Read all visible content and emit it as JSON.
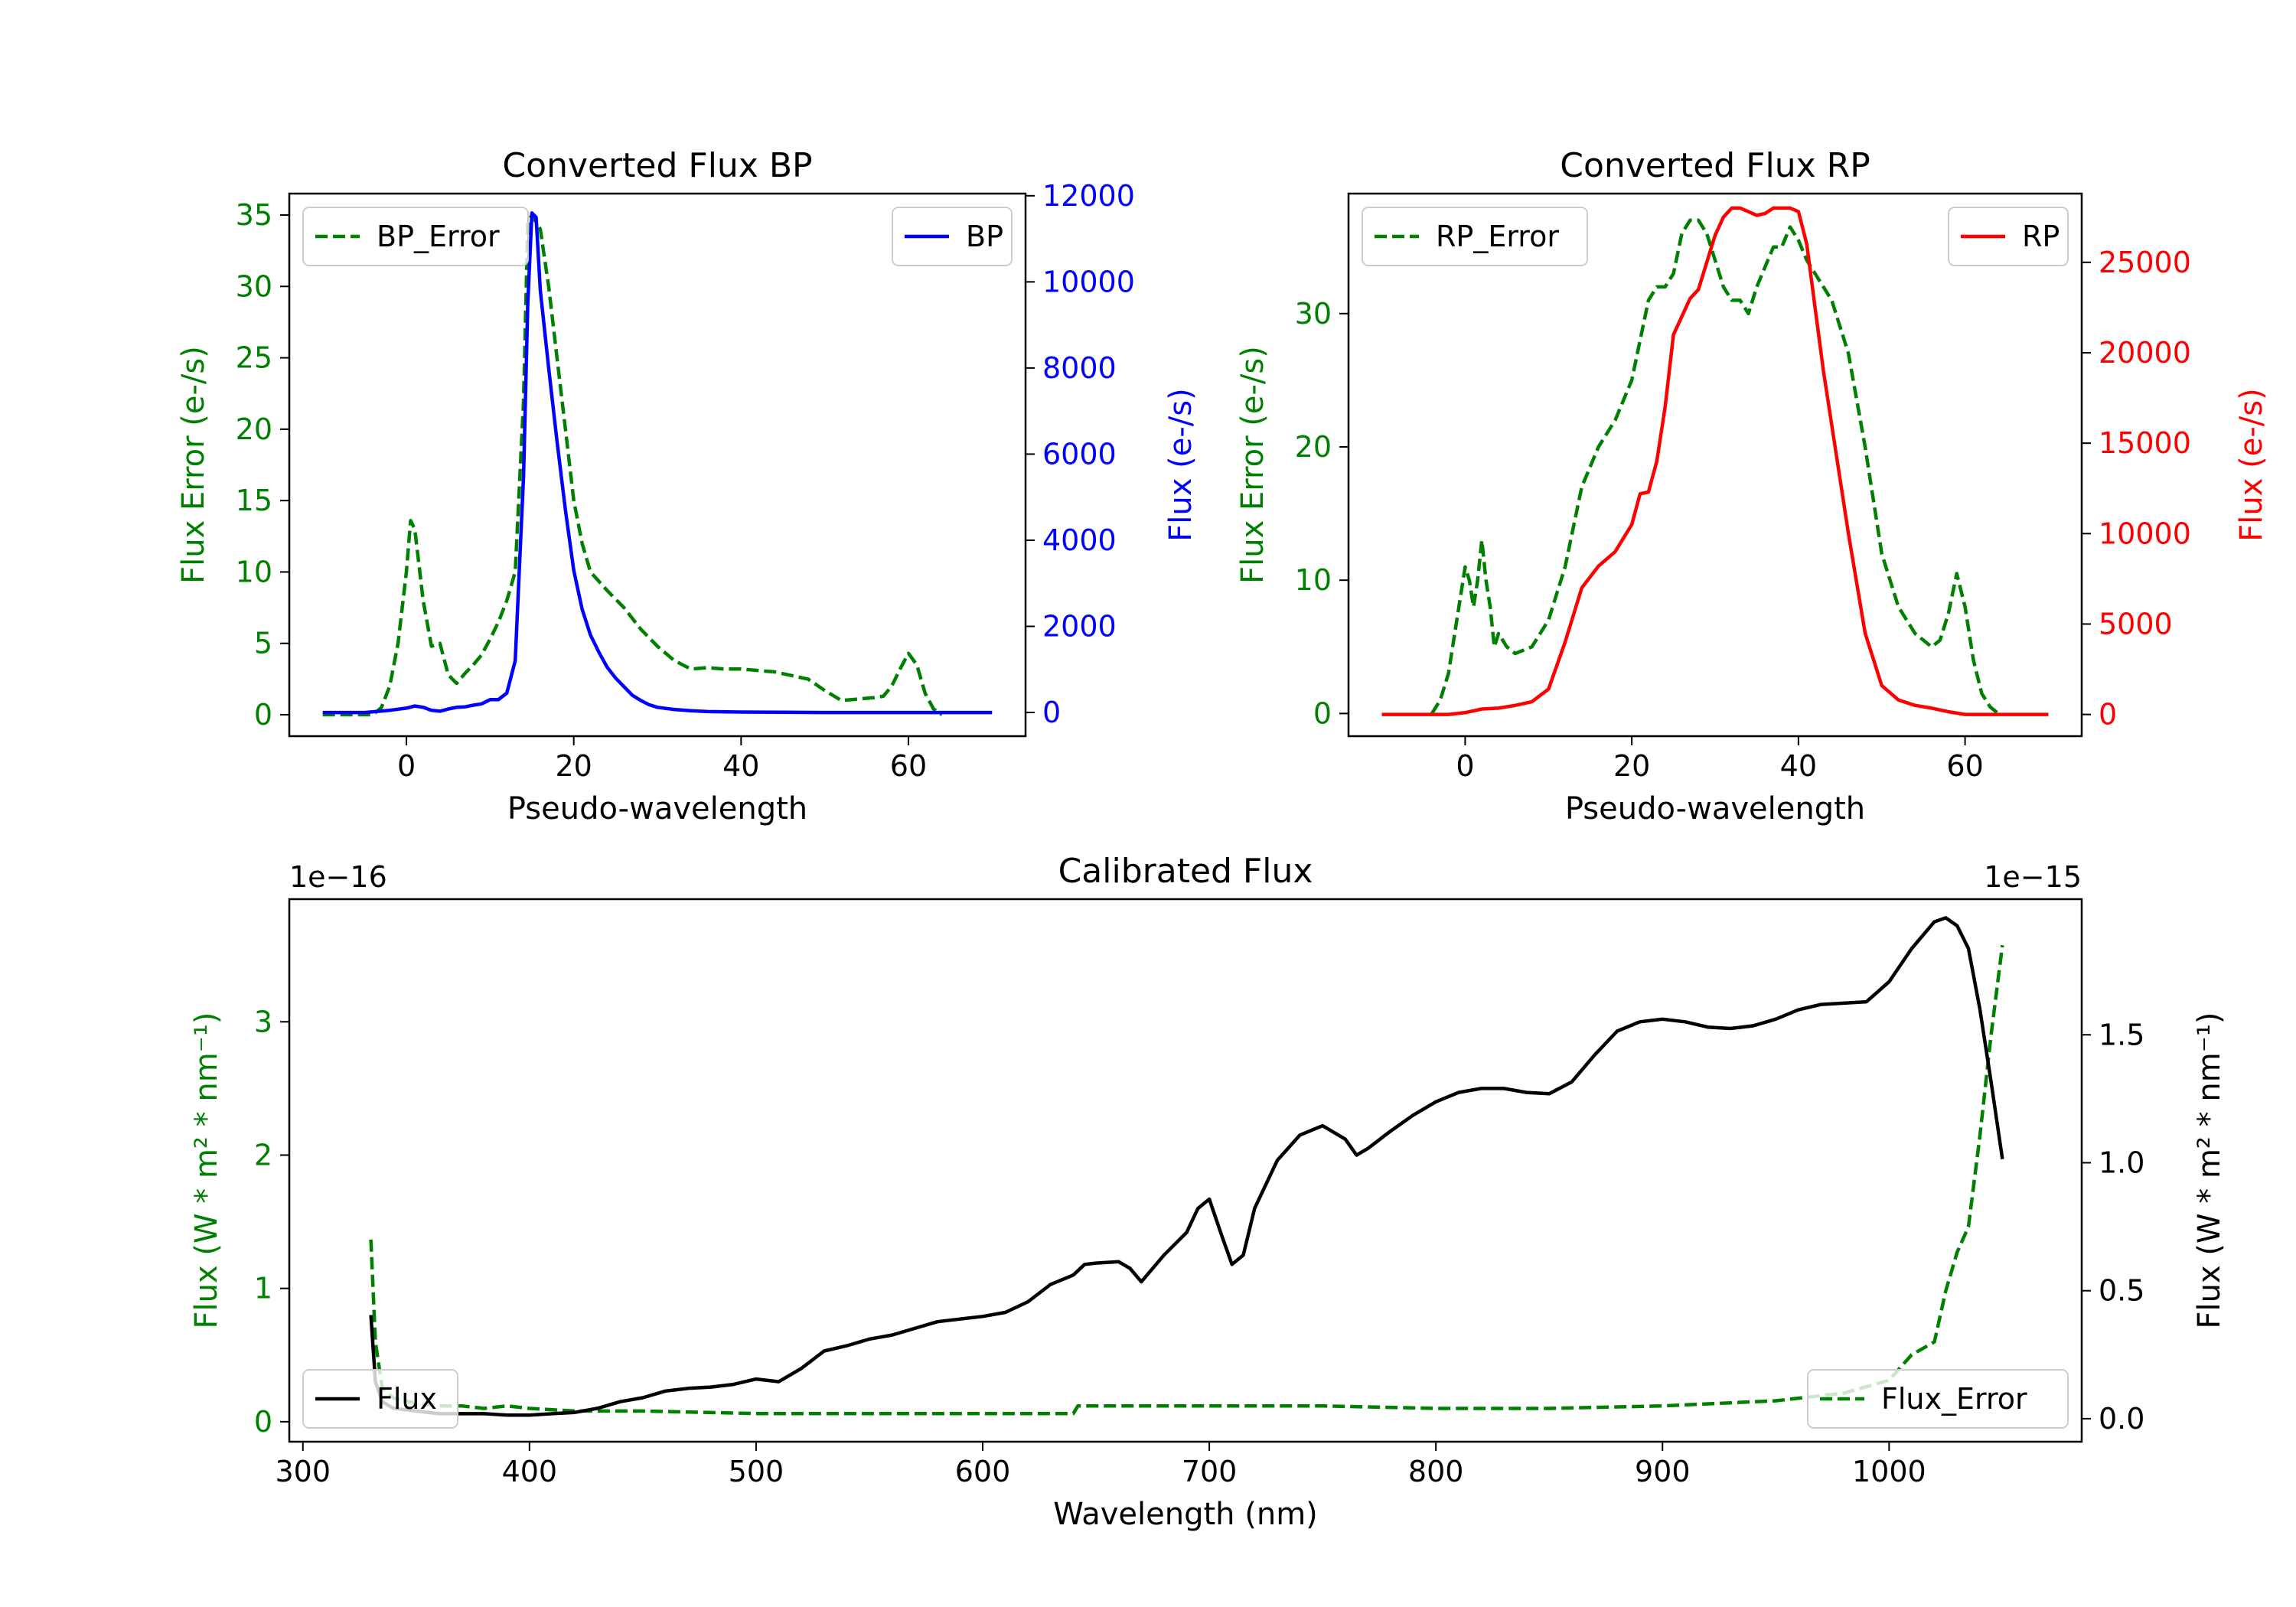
{
  "colors": {
    "green": "#008000",
    "blue": "#0000ff",
    "red": "#ff0000",
    "black": "#000000"
  },
  "chart_data": [
    {
      "id": "bp",
      "type": "line",
      "title": "Converted Flux BP",
      "xlabel": "Pseudo-wavelength",
      "ylabel_left": "Flux Error (e-/s)",
      "ylabel_right": "Flux (e-/s)",
      "xlim": [
        -14,
        74
      ],
      "ylim_left": [
        -1.5,
        36.5
      ],
      "ylim_right": [
        -550,
        12050
      ],
      "xticks": [
        0,
        20,
        40,
        60
      ],
      "yticks_left": [
        0,
        5,
        10,
        15,
        20,
        25,
        30,
        35
      ],
      "yticks_right": [
        0,
        2000,
        4000,
        6000,
        8000,
        10000,
        12000
      ],
      "legend_left": {
        "label": "BP_Error",
        "position": "upper left"
      },
      "legend_right": {
        "label": "BP",
        "position": "upper right"
      },
      "series": [
        {
          "name": "BP_Error",
          "axis": "left",
          "style": "dashed",
          "color": "#008000",
          "x": [
            -10,
            -4,
            -3,
            -2,
            -1,
            0,
            0.5,
            1,
            2,
            3,
            4,
            5,
            6,
            7,
            8,
            9,
            10,
            11,
            12,
            13,
            14,
            14.5,
            15,
            16,
            17,
            18,
            19,
            20,
            21,
            22,
            24,
            26,
            28,
            30,
            32,
            34,
            36,
            38,
            40,
            44,
            48,
            50,
            52,
            54,
            56,
            57,
            58,
            59,
            60,
            61,
            62,
            63,
            64
          ],
          "y": [
            0,
            0,
            0.5,
            2,
            5,
            10,
            13.6,
            13,
            8,
            4.8,
            5,
            2.8,
            2.2,
            2.9,
            3.5,
            4.2,
            5.3,
            6.5,
            8,
            10,
            22,
            34.5,
            35,
            34,
            30,
            25,
            20,
            15,
            12,
            10,
            8.7,
            7.5,
            6,
            4.8,
            3.8,
            3.2,
            3.3,
            3.2,
            3.2,
            3,
            2.5,
            1.7,
            1,
            1.1,
            1.2,
            1.3,
            2,
            3.2,
            4.3,
            3.5,
            1.5,
            0.4,
            0
          ]
        },
        {
          "name": "BP",
          "axis": "right",
          "style": "solid",
          "color": "#0000ff",
          "x": [
            -10,
            -5,
            -2,
            0,
            1,
            2,
            3,
            4,
            5,
            6,
            7,
            8,
            9,
            10,
            11,
            12,
            13,
            14,
            14.5,
            15,
            15.5,
            16,
            17,
            18,
            19,
            20,
            21,
            22,
            23,
            24,
            25,
            26,
            27,
            28,
            29,
            30,
            32,
            34,
            36,
            40,
            45,
            50,
            55,
            60,
            65,
            70
          ],
          "y": [
            0,
            0,
            50,
            100,
            150,
            120,
            50,
            30,
            80,
            120,
            130,
            170,
            200,
            300,
            300,
            450,
            1200,
            5500,
            9500,
            11600,
            11500,
            9800,
            8000,
            6300,
            4700,
            3300,
            2400,
            1800,
            1400,
            1050,
            800,
            600,
            400,
            280,
            180,
            120,
            70,
            40,
            20,
            10,
            5,
            0,
            0,
            0,
            0,
            0
          ]
        }
      ]
    },
    {
      "id": "rp",
      "type": "line",
      "title": "Converted Flux RP",
      "xlabel": "Pseudo-wavelength",
      "ylabel_left": "Flux Error (e-/s)",
      "ylabel_right": "Flux (e-/s)",
      "xlim": [
        -14,
        74
      ],
      "ylim_left": [
        -1.7,
        39
      ],
      "ylim_right": [
        -1200,
        28800
      ],
      "xticks": [
        0,
        20,
        40,
        60
      ],
      "yticks_left": [
        0,
        10,
        20,
        30
      ],
      "yticks_right": [
        0,
        5000,
        10000,
        15000,
        20000,
        25000
      ],
      "legend_left": {
        "label": "RP_Error",
        "position": "upper left"
      },
      "legend_right": {
        "label": "RP",
        "position": "upper right"
      },
      "series": [
        {
          "name": "RP_Error",
          "axis": "left",
          "style": "dashed",
          "color": "#008000",
          "x": [
            -4,
            -3,
            -2,
            -1,
            0,
            0.5,
            1,
            1.5,
            2,
            2.5,
            3,
            3.5,
            4,
            5,
            6,
            8,
            10,
            12,
            14,
            16,
            18,
            20,
            21,
            22,
            23,
            24,
            25,
            26,
            27,
            28,
            29,
            30,
            31,
            32,
            33,
            34,
            35,
            36,
            37,
            38,
            39,
            40,
            41,
            42,
            43,
            44,
            46,
            48,
            50,
            52,
            54,
            56,
            57,
            58,
            59,
            60,
            61,
            62,
            63,
            64
          ],
          "y": [
            0,
            1,
            3,
            7,
            11,
            10,
            8,
            10,
            13,
            10,
            8,
            5,
            6,
            5,
            4.5,
            5,
            7,
            11,
            17,
            20,
            22,
            25,
            28,
            31,
            32,
            32,
            33,
            36,
            37,
            37,
            36,
            34,
            32,
            31,
            31,
            30,
            32,
            33.5,
            35,
            35,
            36.5,
            35.5,
            34,
            33,
            32,
            31,
            27,
            20,
            12,
            8,
            6,
            5,
            5.5,
            7.5,
            10.5,
            8,
            4,
            1.5,
            0.5,
            0
          ]
        },
        {
          "name": "RP",
          "axis": "right",
          "style": "solid",
          "color": "#ff0000",
          "x": [
            -10,
            -2,
            0,
            2,
            4,
            6,
            8,
            10,
            12,
            14,
            16,
            18,
            20,
            21,
            22,
            23,
            24,
            25,
            26,
            27,
            28,
            29,
            30,
            31,
            32,
            33,
            34,
            35,
            36,
            37,
            38,
            39,
            40,
            41,
            42,
            43,
            44,
            46,
            48,
            50,
            52,
            54,
            56,
            58,
            60,
            62,
            64,
            70
          ],
          "y": [
            0,
            0,
            100,
            300,
            350,
            500,
            700,
            1400,
            4000,
            7000,
            8200,
            9000,
            10500,
            12200,
            12300,
            14000,
            17000,
            21000,
            22000,
            23000,
            23500,
            25000,
            26500,
            27500,
            28000,
            28000,
            27800,
            27600,
            27700,
            28000,
            28000,
            28000,
            27800,
            26000,
            22500,
            19000,
            16000,
            10000,
            4500,
            1600,
            800,
            500,
            350,
            150,
            0,
            0,
            0,
            0
          ]
        }
      ]
    },
    {
      "id": "calibrated",
      "type": "line",
      "title": "Calibrated Flux",
      "xlabel": "Wavelength (nm)",
      "ylabel_left": "Flux (W * m² * nm⁻¹)",
      "ylabel_right": "Flux (W * m² * nm⁻¹)",
      "offset_left": "1e−16",
      "offset_right": "1e−15",
      "xlim": [
        294,
        1085
      ],
      "ylim_left": [
        -0.15,
        3.92
      ],
      "ylim_right": [
        -0.09,
        2.03
      ],
      "xticks": [
        300,
        400,
        500,
        600,
        700,
        800,
        900,
        1000
      ],
      "yticks_left": [
        0,
        1,
        2,
        3
      ],
      "yticks_right": [
        0.0,
        0.5,
        1.0,
        1.5
      ],
      "yticks_right_labels": [
        "0.0",
        "0.5",
        "1.0",
        "1.5"
      ],
      "legend_left": {
        "label": "Flux",
        "position": "lower left"
      },
      "legend_right": {
        "label": "Flux_Error",
        "position": "lower right"
      },
      "series": [
        {
          "name": "Flux",
          "axis": "left",
          "style": "solid",
          "color": "#000000",
          "x": [
            330,
            332,
            335,
            340,
            350,
            360,
            370,
            380,
            390,
            400,
            410,
            420,
            430,
            440,
            450,
            460,
            470,
            480,
            490,
            500,
            510,
            520,
            530,
            540,
            550,
            560,
            570,
            580,
            590,
            600,
            610,
            620,
            630,
            640,
            645,
            650,
            660,
            665,
            670,
            680,
            690,
            695,
            700,
            705,
            710,
            715,
            720,
            730,
            740,
            750,
            760,
            765,
            770,
            780,
            790,
            800,
            810,
            820,
            830,
            840,
            850,
            860,
            870,
            880,
            890,
            900,
            910,
            920,
            930,
            940,
            950,
            960,
            970,
            980,
            990,
            1000,
            1010,
            1020,
            1025,
            1030,
            1035,
            1040,
            1045,
            1050
          ],
          "y": [
            0.8,
            0.3,
            0.15,
            0.1,
            0.08,
            0.06,
            0.06,
            0.06,
            0.05,
            0.05,
            0.06,
            0.07,
            0.1,
            0.15,
            0.18,
            0.23,
            0.25,
            0.26,
            0.28,
            0.32,
            0.3,
            0.4,
            0.53,
            0.57,
            0.62,
            0.65,
            0.7,
            0.75,
            0.77,
            0.79,
            0.82,
            0.9,
            1.03,
            1.1,
            1.18,
            1.19,
            1.2,
            1.15,
            1.05,
            1.25,
            1.42,
            1.6,
            1.67,
            1.42,
            1.18,
            1.25,
            1.6,
            1.96,
            2.15,
            2.22,
            2.12,
            2.0,
            2.05,
            2.18,
            2.3,
            2.4,
            2.47,
            2.5,
            2.5,
            2.47,
            2.46,
            2.55,
            2.75,
            2.93,
            3.0,
            3.02,
            3.0,
            2.96,
            2.95,
            2.97,
            3.02,
            3.09,
            3.13,
            3.14,
            3.15,
            3.3,
            3.55,
            3.75,
            3.78,
            3.72,
            3.55,
            3.1,
            2.55,
            1.97
          ]
        },
        {
          "name": "Flux_Error",
          "axis": "right",
          "style": "dashed",
          "color": "#008000",
          "x": [
            330,
            332,
            335,
            340,
            350,
            360,
            370,
            380,
            390,
            400,
            420,
            450,
            500,
            550,
            600,
            640,
            642,
            650,
            700,
            750,
            800,
            850,
            900,
            950,
            980,
            1000,
            1010,
            1020,
            1025,
            1030,
            1035,
            1040,
            1045,
            1050
          ],
          "y": [
            0.7,
            0.3,
            0.12,
            0.08,
            0.06,
            0.05,
            0.05,
            0.04,
            0.05,
            0.04,
            0.03,
            0.03,
            0.02,
            0.02,
            0.02,
            0.02,
            0.05,
            0.05,
            0.05,
            0.05,
            0.04,
            0.04,
            0.05,
            0.07,
            0.1,
            0.15,
            0.25,
            0.3,
            0.5,
            0.65,
            0.75,
            1.1,
            1.5,
            1.85
          ]
        }
      ]
    }
  ]
}
